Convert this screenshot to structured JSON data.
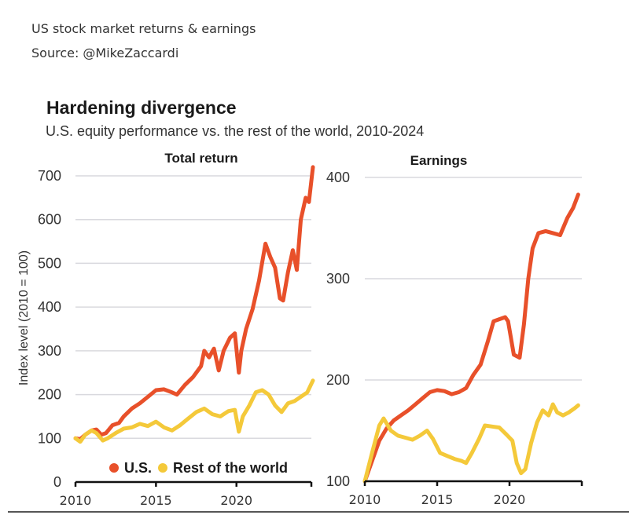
{
  "post": {
    "caption": "US stock market returns & earnings",
    "source": "Source: @MikeZaccardi"
  },
  "colors": {
    "us": "#E8502A",
    "row": "#F4C93A",
    "grid": "#d9d9de",
    "axis": "#111111"
  },
  "chart_data": [
    {
      "type": "line",
      "title": "Hardening divergence",
      "subtitle": "U.S. equity performance vs. the rest of the world, 2010-2024",
      "panel_title": "Total return",
      "xlabel": "",
      "ylabel": "Index level (2010 = 100)",
      "xlim": [
        2010,
        2024.75
      ],
      "ylim": [
        0,
        700
      ],
      "yticks": [
        0,
        100,
        200,
        300,
        400,
        500,
        600,
        700
      ],
      "xticks": [
        2010,
        2015,
        2020
      ],
      "grid": true,
      "legend": {
        "placement": "bottom-right",
        "entries": [
          "U.S.",
          "Rest of the world"
        ]
      },
      "series": [
        {
          "name": "U.S.",
          "x": [
            2010,
            2010.3,
            2010.6,
            2011,
            2011.3,
            2011.6,
            2011.9,
            2012.3,
            2012.7,
            2013,
            2013.5,
            2014,
            2014.5,
            2015,
            2015.5,
            2016,
            2016.3,
            2016.8,
            2017.3,
            2017.8,
            2018.0,
            2018.3,
            2018.6,
            2018.9,
            2019.2,
            2019.6,
            2019.9,
            2020.15,
            2020.3,
            2020.6,
            2021,
            2021.4,
            2021.8,
            2022.1,
            2022.4,
            2022.7,
            2022.9,
            2023.2,
            2023.5,
            2023.75,
            2024.0,
            2024.3,
            2024.5,
            2024.75
          ],
          "values": [
            100,
            98,
            108,
            118,
            120,
            108,
            112,
            130,
            135,
            150,
            168,
            180,
            195,
            210,
            212,
            205,
            200,
            222,
            240,
            265,
            300,
            285,
            305,
            255,
            300,
            330,
            340,
            250,
            300,
            350,
            395,
            460,
            545,
            515,
            490,
            420,
            415,
            480,
            530,
            485,
            600,
            650,
            640,
            720
          ]
        },
        {
          "name": "Rest of the world",
          "x": [
            2010,
            2010.3,
            2010.6,
            2011,
            2011.3,
            2011.7,
            2012,
            2012.5,
            2013,
            2013.5,
            2014,
            2014.5,
            2015,
            2015.5,
            2016,
            2016.5,
            2017,
            2017.5,
            2018,
            2018.5,
            2019,
            2019.5,
            2019.9,
            2020.15,
            2020.4,
            2020.8,
            2021.2,
            2021.6,
            2022,
            2022.4,
            2022.8,
            2023.2,
            2023.6,
            2024,
            2024.4,
            2024.75
          ],
          "values": [
            100,
            92,
            108,
            118,
            112,
            95,
            100,
            112,
            122,
            125,
            133,
            128,
            138,
            125,
            118,
            130,
            145,
            160,
            168,
            155,
            150,
            162,
            165,
            115,
            150,
            175,
            205,
            210,
            200,
            175,
            160,
            180,
            185,
            195,
            205,
            232
          ]
        }
      ]
    },
    {
      "type": "line",
      "panel_title": "Earnings",
      "xlabel": "",
      "ylabel": "",
      "xlim": [
        2010,
        2025
      ],
      "ylim": [
        100,
        400
      ],
      "yticks": [
        100,
        200,
        300,
        400
      ],
      "xticks": [
        2010,
        2015,
        2020
      ],
      "grid": true,
      "series": [
        {
          "name": "U.S.",
          "x": [
            2010,
            2010.5,
            2011,
            2011.5,
            2012,
            2012.5,
            2013,
            2013.5,
            2014,
            2014.5,
            2015,
            2015.5,
            2016,
            2016.5,
            2017,
            2017.5,
            2018,
            2018.5,
            2018.9,
            2019.3,
            2019.7,
            2019.9,
            2020.3,
            2020.7,
            2021.0,
            2021.3,
            2021.6,
            2022.0,
            2022.5,
            2023.0,
            2023.5,
            2024.0,
            2024.4,
            2024.75
          ],
          "values": [
            100,
            120,
            140,
            152,
            160,
            165,
            170,
            176,
            182,
            188,
            190,
            189,
            186,
            188,
            192,
            205,
            215,
            238,
            258,
            260,
            262,
            258,
            225,
            222,
            255,
            300,
            330,
            345,
            347,
            345,
            343,
            360,
            370,
            383
          ]
        },
        {
          "name": "Rest of the world",
          "x": [
            2010,
            2010.5,
            2011,
            2011.3,
            2011.8,
            2012.3,
            2012.8,
            2013.3,
            2013.8,
            2014.3,
            2014.7,
            2015.2,
            2015.7,
            2016.2,
            2016.7,
            2017.0,
            2017.4,
            2017.9,
            2018.3,
            2018.8,
            2019.3,
            2019.8,
            2020.2,
            2020.5,
            2020.8,
            2021.1,
            2021.5,
            2021.9,
            2022.3,
            2022.7,
            2023.0,
            2023.3,
            2023.7,
            2024.1,
            2024.5,
            2024.75
          ],
          "values": [
            100,
            128,
            155,
            162,
            150,
            145,
            143,
            141,
            145,
            150,
            142,
            128,
            125,
            122,
            120,
            118,
            128,
            142,
            155,
            154,
            153,
            146,
            140,
            118,
            108,
            112,
            138,
            158,
            170,
            165,
            176,
            168,
            165,
            168,
            172,
            175
          ]
        }
      ]
    }
  ]
}
